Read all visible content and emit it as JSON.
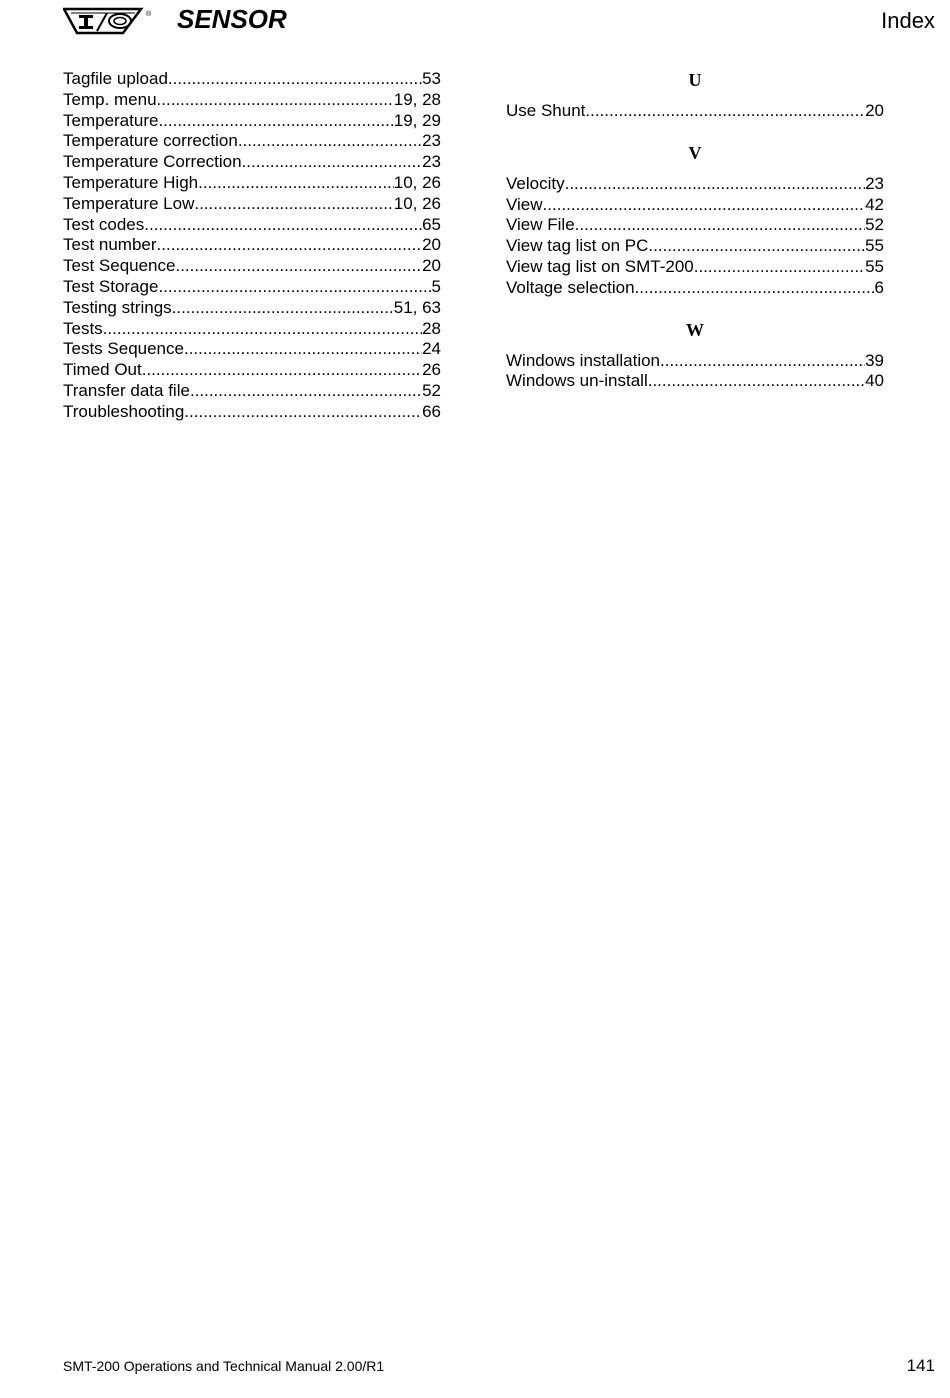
{
  "header": {
    "brand": "SENSOR",
    "logo_text": "I/O",
    "section": "Index"
  },
  "left_entries": [
    {
      "term": "Tagfile upload",
      "pages": "53"
    },
    {
      "term": "Temp. menu",
      "pages": "19, 28"
    },
    {
      "term": "Temperature",
      "pages": "19, 29"
    },
    {
      "term": "Temperature correction",
      "pages": "23"
    },
    {
      "term": "Temperature Correction",
      "pages": "23"
    },
    {
      "term": "Temperature High",
      "pages": "10, 26"
    },
    {
      "term": "Temperature Low",
      "pages": "10, 26"
    },
    {
      "term": "Test codes",
      "pages": "65"
    },
    {
      "term": "Test number",
      "pages": "20"
    },
    {
      "term": "Test Sequence",
      "pages": "20"
    },
    {
      "term": "Test Storage",
      "pages": "5"
    },
    {
      "term": "Testing strings",
      "pages": "51, 63"
    },
    {
      "term": "Tests",
      "pages": "28"
    },
    {
      "term": "Tests Sequence",
      "pages": "24"
    },
    {
      "term": "Timed Out",
      "pages": "26"
    },
    {
      "term": "Transfer data file",
      "pages": "52"
    },
    {
      "term": "Troubleshooting",
      "pages": "66"
    }
  ],
  "right_groups": [
    {
      "letter": "U",
      "entries": [
        {
          "term": "Use Shunt",
          "pages": "20"
        }
      ]
    },
    {
      "letter": "V",
      "entries": [
        {
          "term": "Velocity",
          "pages": "23"
        },
        {
          "term": "View",
          "pages": "42"
        },
        {
          "term": "View File",
          "pages": "52"
        },
        {
          "term": "View tag list on PC",
          "pages": "55"
        },
        {
          "term": "View tag list on SMT-200",
          "pages": "55"
        },
        {
          "term": "Voltage selection",
          "pages": "6"
        }
      ]
    },
    {
      "letter": "W",
      "entries": [
        {
          "term": "Windows installation",
          "pages": "39"
        },
        {
          "term": "Windows un-install",
          "pages": "40"
        }
      ]
    }
  ],
  "footer": {
    "manual": "SMT-200 Operations and Technical Manual 2.00/R1",
    "page_number": "141"
  }
}
